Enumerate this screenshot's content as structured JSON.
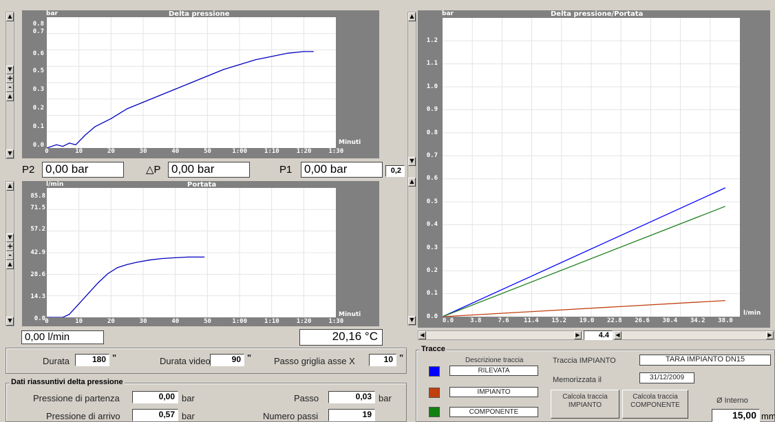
{
  "top_chart": {
    "title": "Delta pressione",
    "yunit": "bar",
    "xunit": "Minuti",
    "yticks": [
      "0.8",
      "0.7",
      "0.6",
      "0.5",
      "0.3",
      "0.2",
      "0.1",
      "0.0"
    ],
    "xticks": [
      "0",
      "10",
      "20",
      "30",
      "40",
      "50",
      "1:00",
      "1:10",
      "1:20",
      "1:30"
    ]
  },
  "flow_chart": {
    "title": "Portata",
    "yunit": "l/min",
    "xunit": "Minuti",
    "yticks": [
      "85.8",
      "71.5",
      "57.2",
      "42.9",
      "28.6",
      "14.3",
      "0.0"
    ],
    "xticks": [
      "0",
      "10",
      "20",
      "30",
      "40",
      "50",
      "1:00",
      "1:10",
      "1:20",
      "1:30"
    ]
  },
  "right_chart": {
    "title": "Delta pressione/Portata",
    "yunit": "bar",
    "xunit": "l/min",
    "yticks": [
      "1.2",
      "1.1",
      "1.0",
      "0.9",
      "0.8",
      "0.7",
      "0.6",
      "0.5",
      "0.4",
      "0.3",
      "0.2",
      "0.1",
      "0.0"
    ],
    "xticks": [
      "0.0",
      "3.8",
      "7.6",
      "11.4",
      "15.2",
      "19.0",
      "22.8",
      "26.6",
      "30.4",
      "34.2",
      "38.0"
    ]
  },
  "chart_data": [
    {
      "type": "line",
      "title": "Delta pressione",
      "ylabel": "bar",
      "xlabel": "Minuti",
      "xlim": [
        0,
        90
      ],
      "ylim": [
        0,
        0.8
      ],
      "grid": true,
      "series": [
        {
          "color": "#0000c0",
          "x": [
            0,
            3,
            5,
            7,
            9,
            12,
            15,
            20,
            25,
            30,
            35,
            40,
            45,
            50,
            55,
            60,
            65,
            70,
            75,
            80,
            83
          ],
          "y": [
            0.0,
            0.02,
            0.01,
            0.03,
            0.02,
            0.08,
            0.13,
            0.18,
            0.24,
            0.28,
            0.32,
            0.36,
            0.4,
            0.44,
            0.48,
            0.51,
            0.54,
            0.56,
            0.58,
            0.59,
            0.59
          ]
        }
      ]
    },
    {
      "type": "line",
      "title": "Portata",
      "ylabel": "l/min",
      "xlabel": "Minuti",
      "xlim": [
        0,
        90
      ],
      "ylim": [
        0,
        85.8
      ],
      "grid": true,
      "series": [
        {
          "color": "#0000c0",
          "x": [
            0,
            5,
            7,
            10,
            13,
            16,
            19,
            22,
            25,
            28,
            32,
            36,
            40,
            44,
            47,
            49
          ],
          "y": [
            0,
            0,
            2,
            9,
            16,
            23,
            29,
            33,
            35,
            36.5,
            38,
            39,
            39.5,
            40,
            40,
            40
          ]
        }
      ]
    },
    {
      "type": "line",
      "title": "Delta pressione/Portata",
      "ylabel": "bar",
      "xlabel": "l/min",
      "xlim": [
        0,
        40
      ],
      "ylim": [
        0,
        1.3
      ],
      "grid": true,
      "series": [
        {
          "color": "#0000ff",
          "x": [
            0,
            38
          ],
          "y": [
            0,
            0.56
          ]
        },
        {
          "color": "#208020",
          "x": [
            0,
            38
          ],
          "y": [
            0,
            0.48
          ]
        },
        {
          "color": "#c04010",
          "x": [
            0,
            38
          ],
          "y": [
            0,
            0.07
          ]
        }
      ]
    }
  ],
  "readouts": {
    "p2_label": "P2",
    "p2_value": "0,00 bar",
    "dp_label": "△P",
    "dp_value": "0,00 bar",
    "p1_label": "P1",
    "p1_value": "0,00 bar",
    "scale_value": "0,2",
    "flow_value": "0,00 l/min",
    "temp_value": "20,16 °C"
  },
  "settings": {
    "durata_label": "Durata",
    "durata_value": "180",
    "durata_unit": "\"",
    "video_label": "Durata video",
    "video_value": "90",
    "video_unit": "\"",
    "passo_label": "Passo griglia asse X",
    "passo_value": "10",
    "passo_unit": "\""
  },
  "summary": {
    "title": "Dati riassuntivi delta pressione",
    "partenza_label": "Pressione di partenza",
    "partenza_value": "0,00",
    "partenza_unit": "bar",
    "arrivo_label": "Pressione di arrivo",
    "arrivo_value": "0,57",
    "arrivo_unit": "bar",
    "passo_label": "Passo",
    "passo_value": "0,03",
    "passo_unit": "bar",
    "npassi_label": "Numero passi",
    "npassi_value": "19"
  },
  "zoom": {
    "value": "4.4"
  },
  "tracce": {
    "title": "Tracce",
    "desc_header": "Descrizione traccia",
    "items": [
      {
        "label": "RILEVATA",
        "color": "#0000ff"
      },
      {
        "label": "IMPIANTO",
        "color": "#c04010"
      },
      {
        "label": "COMPONENTE",
        "color": "#108010"
      }
    ],
    "traccia_impianto_label": "Traccia IMPIANTO",
    "traccia_impianto_value": "TARA IMPIANTO DN15",
    "memorizzata_label": "Memorizzata il",
    "memorizzata_value": "31/12/2009",
    "btn_impianto": "Calcola traccia\nIMPIANTO",
    "btn_componente": "Calcola traccia\nCOMPONENTE",
    "diametro_label": "Ø Interno",
    "diametro_value": "15,00",
    "diametro_unit": "mm"
  }
}
